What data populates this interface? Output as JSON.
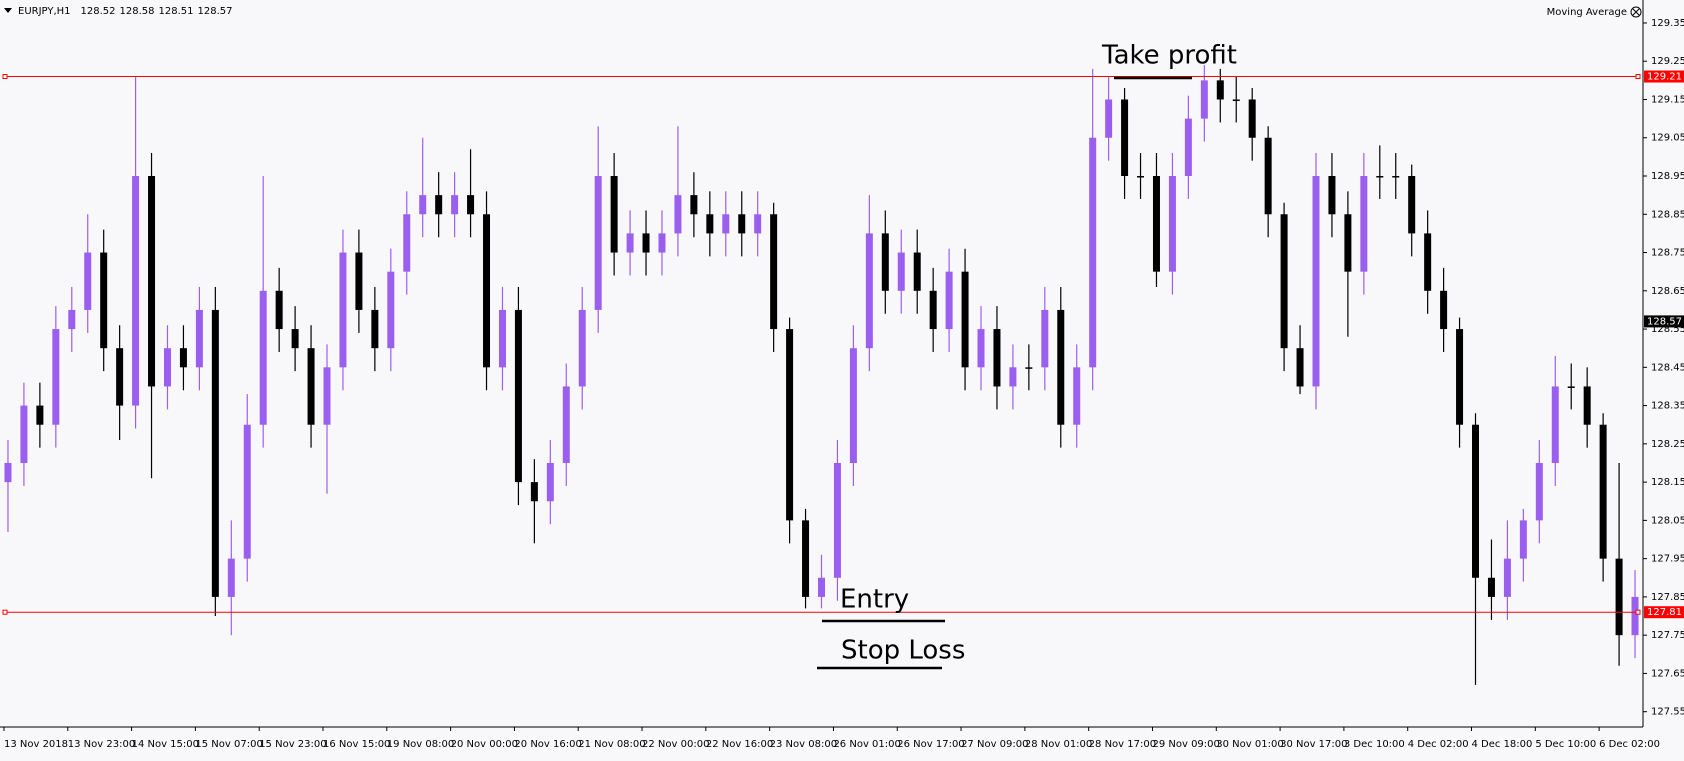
{
  "chart_data": {
    "type": "candlestick",
    "title": "EURJPY,H1",
    "quote": [
      128.52,
      128.58,
      128.51,
      128.57
    ],
    "indicator": "Moving Average",
    "up_color": "#9b5ff0",
    "down_color": "#000000",
    "categories": [
      "13 Nov 2018",
      null,
      null,
      null,
      "13 Nov 23:00",
      null,
      null,
      null,
      "14 Nov 15:00",
      null,
      null,
      null,
      "15 Nov 07:00",
      null,
      null,
      null,
      "15 Nov 23:00",
      null,
      null,
      null,
      "16 Nov 15:00",
      null,
      null,
      null,
      "19 Nov 08:00",
      null,
      null,
      null,
      "20 Nov 00:00",
      null,
      null,
      null,
      "20 Nov 16:00",
      null,
      null,
      null,
      "21 Nov 08:00",
      null,
      null,
      null,
      "22 Nov 00:00",
      null,
      null,
      null,
      "22 Nov 16:00",
      null,
      null,
      null,
      "23 Nov 08:00",
      null,
      null,
      null,
      "26 Nov 01:00",
      null,
      null,
      null,
      "26 Nov 17:00",
      null,
      null,
      null,
      "27 Nov 09:00",
      null,
      null,
      null,
      "28 Nov 01:00",
      null,
      null,
      null,
      "28 Nov 17:00",
      null,
      null,
      null,
      "29 Nov 09:00",
      null,
      null,
      null,
      "30 Nov 01:00",
      null,
      null,
      null,
      "30 Nov 17:00",
      null,
      null,
      null,
      "3 Dec 10:00",
      null,
      null,
      null,
      "4 Dec 02:00",
      null,
      null,
      null,
      "4 Dec 18:00",
      null,
      null,
      null,
      "5 Dec 10:00",
      null,
      null,
      null,
      "6 Dec 02:00",
      null,
      null
    ],
    "open": [
      128.15,
      128.2,
      128.35,
      128.3,
      128.55,
      128.6,
      128.75,
      128.5,
      128.35,
      128.95,
      128.4,
      128.5,
      128.45,
      128.6,
      127.85,
      127.95,
      128.3,
      128.65,
      128.55,
      128.5,
      128.3,
      128.45,
      128.75,
      128.6,
      128.5,
      128.7,
      128.85,
      128.9,
      128.85,
      128.9,
      128.85,
      128.45,
      128.6,
      128.15,
      128.1,
      128.2,
      128.4,
      128.6,
      128.95,
      128.75,
      128.8,
      128.75,
      128.8,
      128.9,
      128.85,
      128.8,
      128.85,
      128.8,
      128.85,
      128.55,
      128.05,
      127.85,
      127.9,
      128.2,
      128.5,
      128.8,
      128.65,
      128.75,
      128.65,
      128.55,
      128.7,
      128.45,
      128.55,
      128.4,
      128.45,
      128.45,
      128.6,
      128.3,
      128.45,
      129.05,
      129.15,
      128.95,
      128.95,
      128.7,
      128.95,
      129.1,
      129.2,
      129.15,
      129.15,
      129.05,
      128.85,
      128.5,
      128.4,
      128.95,
      128.85,
      128.7,
      128.95,
      128.95,
      128.95,
      128.8,
      128.65,
      128.55,
      128.3,
      127.9,
      127.85,
      127.95,
      128.05,
      128.2,
      128.4,
      128.4,
      128.3,
      127.95,
      127.75
    ],
    "high": [
      128.26,
      128.41,
      128.41,
      128.61,
      128.66,
      128.85,
      128.81,
      128.56,
      129.21,
      129.01,
      128.56,
      128.56,
      128.66,
      128.66,
      128.05,
      128.38,
      128.95,
      128.71,
      128.61,
      128.56,
      128.51,
      128.81,
      128.81,
      128.66,
      128.76,
      128.91,
      129.05,
      128.96,
      128.96,
      129.02,
      128.91,
      128.66,
      128.66,
      128.21,
      128.26,
      128.46,
      128.66,
      129.08,
      129.01,
      128.86,
      128.86,
      128.86,
      129.08,
      128.96,
      128.91,
      128.91,
      128.91,
      128.91,
      128.88,
      128.58,
      128.08,
      127.96,
      128.26,
      128.56,
      128.9,
      128.86,
      128.81,
      128.81,
      128.71,
      128.76,
      128.76,
      128.61,
      128.61,
      128.51,
      128.51,
      128.66,
      128.66,
      128.51,
      129.23,
      129.21,
      129.18,
      129.01,
      129.01,
      129.01,
      129.16,
      129.24,
      129.23,
      129.21,
      129.18,
      129.08,
      128.88,
      128.56,
      129.01,
      129.01,
      128.91,
      129.01,
      129.03,
      129.01,
      128.98,
      128.86,
      128.71,
      128.58,
      128.33,
      128.0,
      128.05,
      128.08,
      128.26,
      128.48,
      128.46,
      128.45,
      128.33,
      128.2,
      127.92
    ],
    "low": [
      128.02,
      128.14,
      128.24,
      128.24,
      128.49,
      128.54,
      128.44,
      128.26,
      128.29,
      128.16,
      128.34,
      128.39,
      128.39,
      127.8,
      127.75,
      127.89,
      128.24,
      128.49,
      128.44,
      128.24,
      128.12,
      128.39,
      128.54,
      128.44,
      128.44,
      128.64,
      128.79,
      128.79,
      128.79,
      128.79,
      128.39,
      128.39,
      128.09,
      127.99,
      128.04,
      128.14,
      128.34,
      128.54,
      128.69,
      128.69,
      128.69,
      128.69,
      128.74,
      128.79,
      128.74,
      128.74,
      128.74,
      128.74,
      128.49,
      127.99,
      127.82,
      127.82,
      127.84,
      128.14,
      128.44,
      128.59,
      128.59,
      128.59,
      128.49,
      128.49,
      128.39,
      128.39,
      128.34,
      128.34,
      128.39,
      128.39,
      128.24,
      128.24,
      128.39,
      128.99,
      128.89,
      128.89,
      128.66,
      128.64,
      128.89,
      129.04,
      129.09,
      129.09,
      128.99,
      128.79,
      128.44,
      128.38,
      128.34,
      128.79,
      128.53,
      128.64,
      128.89,
      128.89,
      128.74,
      128.59,
      128.49,
      128.24,
      127.62,
      127.79,
      127.79,
      127.89,
      127.99,
      128.14,
      128.34,
      128.24,
      127.89,
      127.67,
      127.69
    ],
    "close": [
      128.2,
      128.35,
      128.3,
      128.55,
      128.6,
      128.75,
      128.5,
      128.35,
      128.95,
      128.4,
      128.5,
      128.45,
      128.6,
      127.85,
      127.95,
      128.3,
      128.65,
      128.55,
      128.5,
      128.3,
      128.45,
      128.75,
      128.6,
      128.5,
      128.7,
      128.85,
      128.9,
      128.85,
      128.9,
      128.85,
      128.45,
      128.6,
      128.15,
      128.1,
      128.2,
      128.4,
      128.6,
      128.95,
      128.75,
      128.8,
      128.75,
      128.8,
      128.9,
      128.85,
      128.8,
      128.85,
      128.8,
      128.85,
      128.55,
      128.05,
      127.85,
      127.9,
      128.2,
      128.5,
      128.8,
      128.65,
      128.75,
      128.65,
      128.55,
      128.7,
      128.45,
      128.55,
      128.4,
      128.45,
      128.45,
      128.6,
      128.3,
      128.45,
      129.05,
      129.15,
      128.95,
      128.95,
      128.7,
      128.95,
      129.1,
      129.2,
      129.15,
      129.15,
      129.05,
      128.85,
      128.5,
      128.4,
      128.95,
      128.85,
      128.7,
      128.95,
      128.95,
      128.95,
      128.8,
      128.65,
      128.55,
      128.3,
      127.9,
      127.85,
      127.95,
      128.05,
      128.2,
      128.4,
      128.4,
      128.3,
      127.95,
      127.75,
      127.85
    ],
    "ylim": [
      127.51,
      129.41
    ],
    "yticks": [
      127.55,
      127.65,
      127.75,
      127.85,
      127.95,
      128.05,
      128.15,
      128.25,
      128.35,
      128.45,
      128.55,
      128.65,
      128.75,
      128.85,
      128.95,
      129.05,
      129.15,
      129.25,
      129.35
    ],
    "hlines": [
      {
        "value": 129.21,
        "color": "#ff0000"
      },
      {
        "value": 127.81,
        "color": "#ff0000"
      }
    ],
    "current_price": 128.57,
    "annotations": [
      "Take profit",
      "Entry",
      "Stop Loss"
    ],
    "grid": false
  }
}
